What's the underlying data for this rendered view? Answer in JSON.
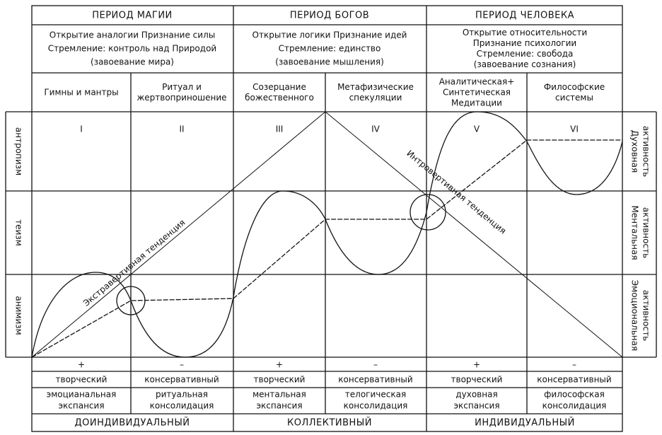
{
  "periods": [
    {
      "title": "ПЕРИОД МАГИИ",
      "description": [
        "Открытие аналогии Признание силы",
        "Стремление: контроль над Природой",
        "(завоевание мира)"
      ],
      "columns": [
        {
          "heading": [
            "Гимны и мантры"
          ],
          "numeral": "I",
          "sign": "+",
          "mode": "творческий",
          "phase": [
            "эмоцианальная",
            "экспансия"
          ]
        },
        {
          "heading": [
            "Ритуал и",
            "жертвоприношение"
          ],
          "numeral": "II",
          "sign": "–",
          "mode": "консервативный",
          "phase": [
            "ритуальная",
            "консолидация"
          ]
        }
      ],
      "footer": "ДОИНДИВИДУАЛЬНЫЙ"
    },
    {
      "title": "ПЕРИОД БОГОВ",
      "description": [
        "Открытие логики Признание идей",
        "Стремление: единство",
        "(завоевание мышления)"
      ],
      "columns": [
        {
          "heading": [
            "Созерцание",
            "божественного"
          ],
          "numeral": "III",
          "sign": "+",
          "mode": "творческий",
          "phase": [
            "ментальная",
            "экспансия"
          ]
        },
        {
          "heading": [
            "Метафизические",
            "спекуляции"
          ],
          "numeral": "IV",
          "sign": "–",
          "mode": "консервативный",
          "phase": [
            "телогическая",
            "консолидация"
          ]
        }
      ],
      "footer": "КОЛЛЕКТИВНЫЙ"
    },
    {
      "title": "ПЕРИОД ЧЕЛОВЕКА",
      "description": [
        "Открытие относительности",
        "Признание психологии",
        "Стремление: свобода",
        "(завоевание сознания)"
      ],
      "columns": [
        {
          "heading": [
            "Аналитическая+",
            "Синтетическая",
            "Медитации"
          ],
          "numeral": "V",
          "sign": "+",
          "mode": "творческий",
          "phase": [
            "духовная",
            "экспансия"
          ]
        },
        {
          "heading": [
            "Философские",
            "системы"
          ],
          "numeral": "VI",
          "sign": "–",
          "mode": "консервативный",
          "phase": [
            "философская",
            "консолидация"
          ]
        }
      ],
      "footer": "ИНДИВИДУАЛЬНЫЙ"
    }
  ],
  "left_labels": [
    "антропизм",
    "теизм",
    "анимизм"
  ],
  "right_labels": [
    [
      "Духовная",
      "активность"
    ],
    [
      "Ментальная",
      "активность"
    ],
    [
      "Эмоциональная",
      "активность"
    ]
  ],
  "trends": {
    "extravert": "Экстравертивная тенденция",
    "introvert": "Интровертивная тенденция"
  }
}
